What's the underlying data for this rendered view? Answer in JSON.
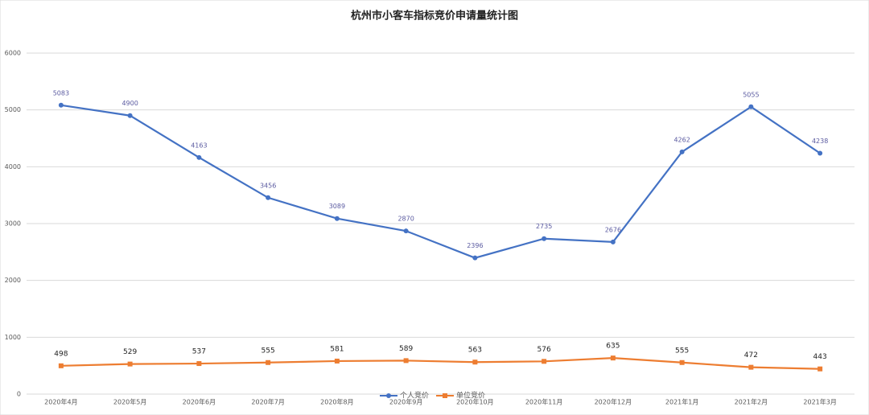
{
  "chart_data": {
    "type": "line",
    "title": "杭州市小客车指标竞价申请量统计图",
    "categories": [
      "2020年4月",
      "2020年5月",
      "2020年6月",
      "2020年7月",
      "2020年8月",
      "2020年9月",
      "2020年10月",
      "2020年11月",
      "2020年12月",
      "2021年1月",
      "2021年2月",
      "2021年3月"
    ],
    "series": [
      {
        "name": "个人竞价",
        "color": "#4472c4",
        "values": [
          5083,
          4900,
          4163,
          3456,
          3089,
          2870,
          2396,
          2735,
          2676,
          4262,
          5055,
          4238
        ]
      },
      {
        "name": "单位竞价",
        "color": "#ed7d31",
        "values": [
          498,
          529,
          537,
          555,
          581,
          589,
          563,
          576,
          635,
          555,
          472,
          443
        ]
      }
    ],
    "ylim": [
      0,
      6000
    ],
    "yticks": [
      0,
      1000,
      2000,
      3000,
      4000,
      5000,
      6000
    ],
    "grid": true,
    "legend": "bottom"
  }
}
